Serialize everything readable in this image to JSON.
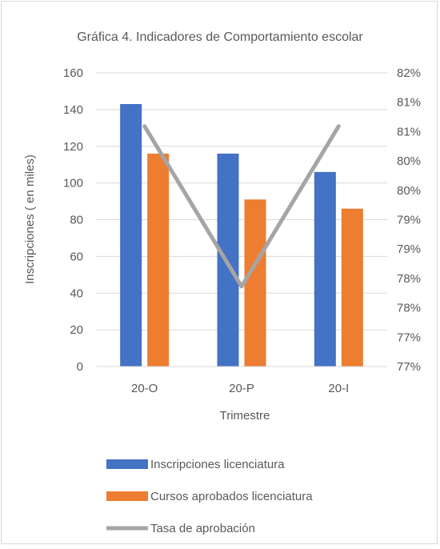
{
  "chart_data": {
    "type": "bar",
    "title": "Gráfica 4. Indicadores de Comportamiento escolar",
    "xlabel": "Trimestre",
    "ylabel": "Inscripciones ( en miles)",
    "categories": [
      "20-O",
      "20-P",
      "20-I"
    ],
    "ylim": [
      0,
      160
    ],
    "yticks": [
      "0",
      "20",
      "40",
      "60",
      "80",
      "100",
      "120",
      "140",
      "160"
    ],
    "y2lim": [
      0.765,
      0.82
    ],
    "y2ticks": [
      "77%",
      "77%",
      "78%",
      "78%",
      "79%",
      "79%",
      "80%",
      "80%",
      "81%",
      "81%",
      "82%"
    ],
    "series": [
      {
        "name": "Inscripciones licenciatura",
        "type": "bar",
        "axis": "left",
        "color": "#4472c4",
        "values": [
          143,
          116,
          106
        ]
      },
      {
        "name": "Cursos aprobados licenciatura",
        "type": "bar",
        "axis": "left",
        "color": "#ed7d31",
        "values": [
          116,
          91,
          86
        ]
      },
      {
        "name": "Tasa de aprobación",
        "type": "line",
        "axis": "right",
        "color": "#a5a5a5",
        "values": [
          0.81,
          0.78,
          0.81
        ]
      }
    ],
    "grid": true,
    "legend": "bottom"
  }
}
